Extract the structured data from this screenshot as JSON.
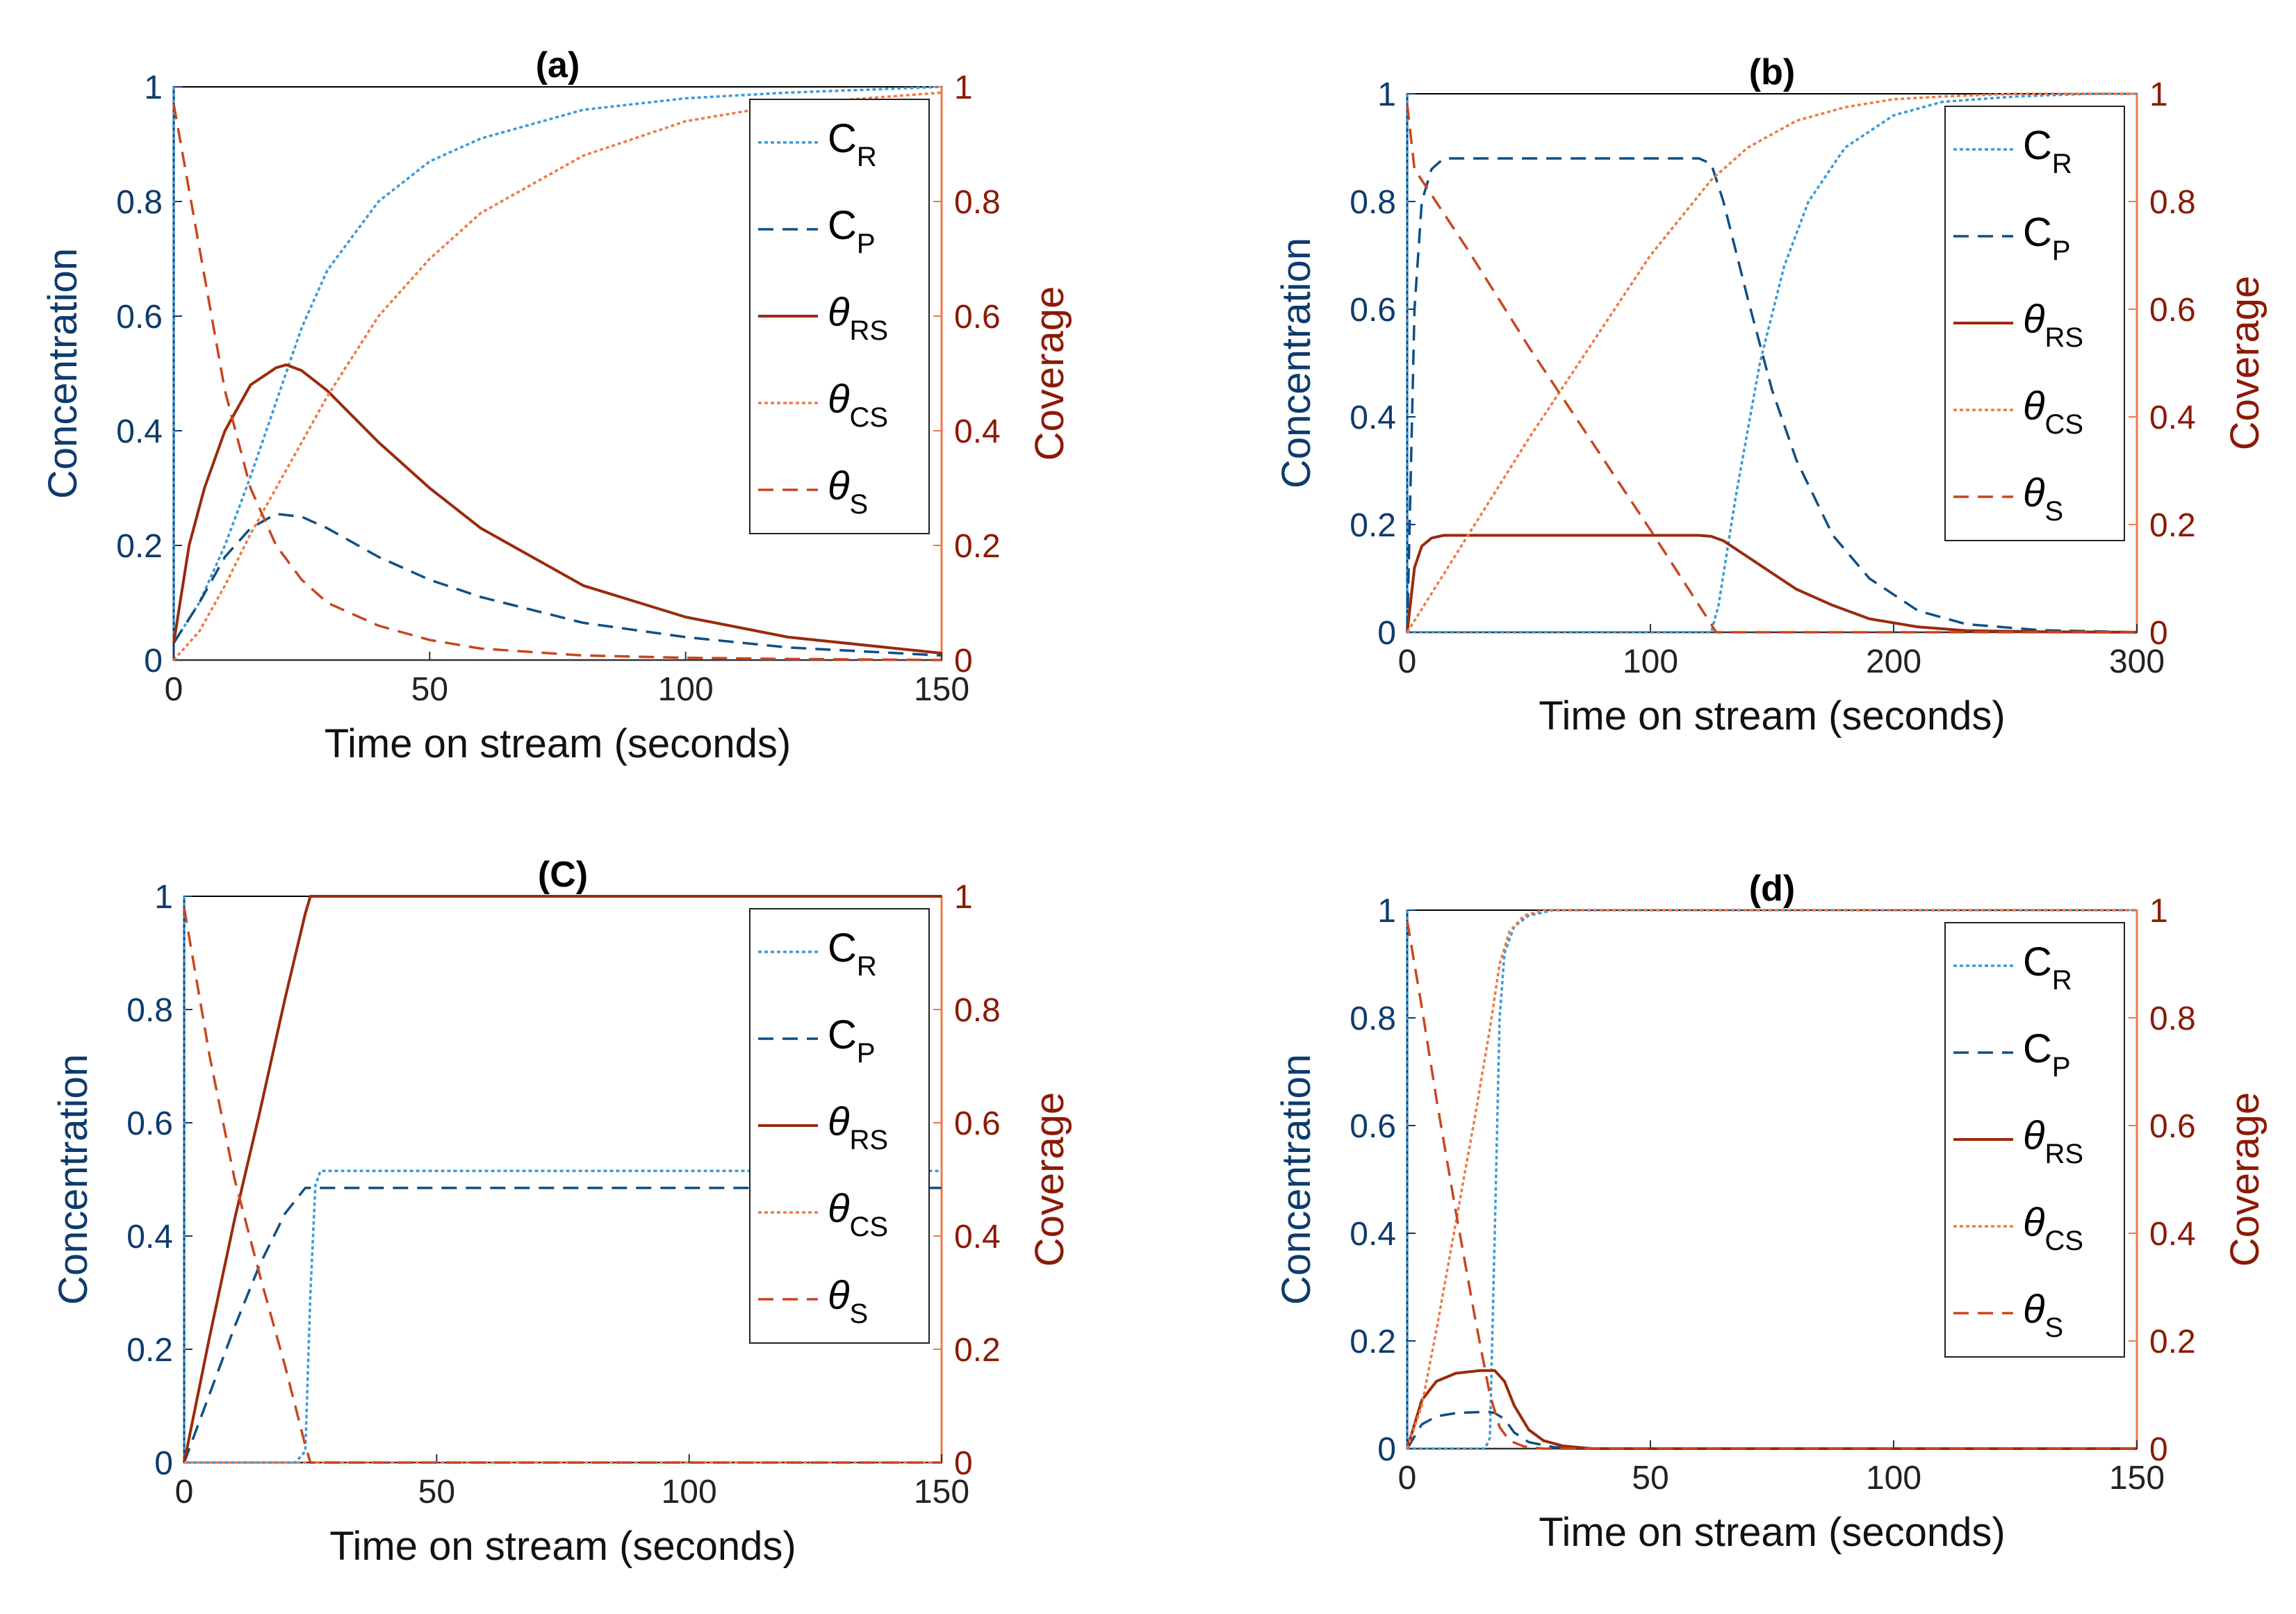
{
  "figure": {
    "colors": {
      "conc_axis": "#0d3b6e",
      "cov_axis": "#8b1a05",
      "c_r": "#3a9ad9",
      "c_p": "#0e4f86",
      "theta_rs": "#9a2a0c",
      "theta_cs": "#ef7a45",
      "theta_s": "#c8461e"
    }
  },
  "chart_data": [
    {
      "panel": "a",
      "type": "line",
      "title": "(a)",
      "xlabel": "Time on stream (seconds)",
      "ylabel_left": "Concentration",
      "ylabel_right": "Coverage",
      "xlim": [
        0,
        150
      ],
      "ylim_left": [
        0,
        1
      ],
      "ylim_right": [
        0,
        1
      ],
      "xticks": [
        "0",
        "50",
        "100",
        "150"
      ],
      "yticks_left": [
        "0",
        "0.2",
        "0.4",
        "0.6",
        "0.8",
        "1"
      ],
      "yticks_right": [
        "0",
        "0.2",
        "0.4",
        "0.6",
        "0.8",
        "1"
      ],
      "legend_position": "top-right",
      "legend": [
        {
          "main": "C",
          "sub": "R",
          "style": "dotted",
          "color": "#3a9ad9",
          "italic": false
        },
        {
          "main": "C",
          "sub": "P",
          "style": "dashed",
          "color": "#0e4f86",
          "italic": false
        },
        {
          "main": "θ",
          "sub": "RS",
          "style": "solid",
          "color": "#9a2a0c",
          "italic": true
        },
        {
          "main": "θ",
          "sub": "CS",
          "style": "dotted",
          "color": "#ef7a45",
          "italic": true
        },
        {
          "main": "θ",
          "sub": "S",
          "style": "dashed",
          "color": "#c8461e",
          "italic": true
        }
      ],
      "series": [
        {
          "name": "C_R",
          "style": "dotted",
          "color": "#3a9ad9",
          "x": [
            0,
            0,
            5,
            10,
            15,
            20,
            25,
            30,
            40,
            50,
            60,
            80,
            100,
            120,
            150
          ],
          "y": [
            1,
            0.03,
            0.1,
            0.2,
            0.32,
            0.45,
            0.58,
            0.68,
            0.8,
            0.87,
            0.91,
            0.96,
            0.98,
            0.99,
            1.0
          ]
        },
        {
          "name": "C_P",
          "style": "dashed",
          "color": "#0e4f86",
          "x": [
            0,
            5,
            10,
            15,
            20,
            25,
            30,
            40,
            50,
            60,
            80,
            100,
            120,
            150
          ],
          "y": [
            0.03,
            0.1,
            0.18,
            0.23,
            0.255,
            0.25,
            0.23,
            0.18,
            0.14,
            0.11,
            0.065,
            0.04,
            0.022,
            0.008
          ]
        },
        {
          "name": "θ_RS",
          "style": "solid",
          "color": "#9a2a0c",
          "x": [
            0,
            3,
            6,
            10,
            15,
            20,
            22,
            25,
            30,
            40,
            50,
            60,
            80,
            100,
            120,
            150
          ],
          "y": [
            0.03,
            0.2,
            0.3,
            0.4,
            0.48,
            0.51,
            0.515,
            0.505,
            0.47,
            0.38,
            0.3,
            0.23,
            0.13,
            0.075,
            0.04,
            0.012
          ]
        },
        {
          "name": "θ_CS",
          "style": "dotted",
          "color": "#ef7a45",
          "x": [
            0,
            5,
            10,
            15,
            20,
            25,
            30,
            40,
            50,
            60,
            80,
            100,
            120,
            150
          ],
          "y": [
            0,
            0.05,
            0.13,
            0.22,
            0.3,
            0.38,
            0.46,
            0.6,
            0.7,
            0.78,
            0.88,
            0.94,
            0.97,
            0.99
          ]
        },
        {
          "name": "θ_S",
          "style": "dashed",
          "color": "#c8461e",
          "x": [
            0,
            5,
            10,
            15,
            20,
            25,
            30,
            40,
            50,
            60,
            80,
            100,
            120,
            150
          ],
          "y": [
            0.97,
            0.72,
            0.47,
            0.3,
            0.2,
            0.14,
            0.1,
            0.06,
            0.035,
            0.02,
            0.008,
            0.004,
            0.002,
            0
          ]
        }
      ]
    },
    {
      "panel": "b",
      "type": "line",
      "title": "(b)",
      "xlabel": "Time on stream (seconds)",
      "ylabel_left": "Concentration",
      "ylabel_right": "Coverage",
      "xlim": [
        0,
        300
      ],
      "ylim_left": [
        0,
        1
      ],
      "ylim_right": [
        0,
        1
      ],
      "xticks": [
        "0",
        "100",
        "200",
        "300"
      ],
      "yticks_left": [
        "0",
        "0.2",
        "0.4",
        "0.6",
        "0.8",
        "1"
      ],
      "yticks_right": [
        "0",
        "0.2",
        "0.4",
        "0.6",
        "0.8",
        "1"
      ],
      "legend_position": "top-right",
      "legend": [
        {
          "main": "C",
          "sub": "R",
          "style": "dotted",
          "color": "#3a9ad9",
          "italic": false
        },
        {
          "main": "C",
          "sub": "P",
          "style": "dashed",
          "color": "#0e4f86",
          "italic": false
        },
        {
          "main": "θ",
          "sub": "RS",
          "style": "solid",
          "color": "#9a2a0c",
          "italic": true
        },
        {
          "main": "θ",
          "sub": "CS",
          "style": "dotted",
          "color": "#ef7a45",
          "italic": true
        },
        {
          "main": "θ",
          "sub": "S",
          "style": "dashed",
          "color": "#c8461e",
          "italic": true
        }
      ],
      "series": [
        {
          "name": "C_R",
          "style": "dotted",
          "color": "#3a9ad9",
          "x": [
            0,
            0,
            5,
            100,
            125,
            128,
            135,
            145,
            155,
            165,
            180,
            200,
            220,
            250,
            280,
            300
          ],
          "y": [
            1,
            0,
            0,
            0,
            0,
            0.05,
            0.25,
            0.5,
            0.68,
            0.8,
            0.9,
            0.96,
            0.985,
            0.995,
            1.0,
            1.0
          ]
        },
        {
          "name": "C_P",
          "style": "dashed",
          "color": "#0e4f86",
          "x": [
            0,
            3,
            6,
            10,
            15,
            30,
            100,
            120,
            125,
            130,
            140,
            150,
            160,
            175,
            190,
            210,
            230,
            260,
            300
          ],
          "y": [
            0,
            0.6,
            0.8,
            0.86,
            0.88,
            0.88,
            0.88,
            0.88,
            0.87,
            0.8,
            0.62,
            0.45,
            0.32,
            0.18,
            0.1,
            0.04,
            0.015,
            0.004,
            0
          ]
        },
        {
          "name": "θ_RS",
          "style": "solid",
          "color": "#9a2a0c",
          "x": [
            0,
            3,
            6,
            10,
            15,
            30,
            100,
            120,
            125,
            130,
            140,
            150,
            160,
            175,
            190,
            210,
            230,
            260,
            300
          ],
          "y": [
            0,
            0.12,
            0.16,
            0.175,
            0.18,
            0.18,
            0.18,
            0.18,
            0.178,
            0.17,
            0.14,
            0.11,
            0.08,
            0.05,
            0.025,
            0.01,
            0.003,
            0.001,
            0
          ]
        },
        {
          "name": "θ_CS",
          "style": "dotted",
          "color": "#ef7a45",
          "x": [
            0,
            25,
            50,
            75,
            100,
            125,
            140,
            160,
            180,
            200,
            220,
            250,
            300
          ],
          "y": [
            0,
            0.18,
            0.36,
            0.53,
            0.7,
            0.84,
            0.9,
            0.95,
            0.975,
            0.99,
            0.995,
            1.0,
            1.0
          ]
        },
        {
          "name": "θ_S",
          "style": "dashed",
          "color": "#c8461e",
          "x": [
            0,
            3,
            25,
            50,
            75,
            100,
            125,
            127,
            300
          ],
          "y": [
            0.98,
            0.86,
            0.71,
            0.53,
            0.36,
            0.19,
            0.015,
            0,
            0
          ]
        }
      ]
    },
    {
      "panel": "c",
      "type": "line",
      "title": "(C)",
      "xlabel": "Time on stream (seconds)",
      "ylabel_left": "Concentration",
      "ylabel_right": "Coverage",
      "xlim": [
        0,
        150
      ],
      "ylim_left": [
        0,
        1
      ],
      "ylim_right": [
        0,
        1
      ],
      "xticks": [
        "0",
        "50",
        "100",
        "150"
      ],
      "yticks_left": [
        "0",
        "0.2",
        "0.4",
        "0.6",
        "0.8",
        "1"
      ],
      "yticks_right": [
        "0",
        "0.2",
        "0.4",
        "0.6",
        "0.8",
        "1"
      ],
      "legend_position": "top-right",
      "legend": [
        {
          "main": "C",
          "sub": "R",
          "style": "dotted",
          "color": "#3a9ad9",
          "italic": false
        },
        {
          "main": "C",
          "sub": "P",
          "style": "dashed",
          "color": "#0e4f86",
          "italic": false
        },
        {
          "main": "θ",
          "sub": "RS",
          "style": "solid",
          "color": "#9a2a0c",
          "italic": true
        },
        {
          "main": "θ",
          "sub": "CS",
          "style": "dotted",
          "color": "#ef7a45",
          "italic": true
        },
        {
          "main": "θ",
          "sub": "S",
          "style": "dashed",
          "color": "#c8461e",
          "italic": true
        }
      ],
      "series": [
        {
          "name": "C_R",
          "style": "dotted",
          "color": "#3a9ad9",
          "x": [
            0,
            0,
            5,
            22,
            24,
            25,
            26,
            27,
            150
          ],
          "y": [
            1,
            0,
            0,
            0,
            0.02,
            0.3,
            0.49,
            0.515,
            0.515
          ]
        },
        {
          "name": "C_P",
          "style": "dashed",
          "color": "#0e4f86",
          "x": [
            0,
            5,
            10,
            15,
            20,
            24,
            26,
            150
          ],
          "y": [
            0,
            0.12,
            0.24,
            0.35,
            0.44,
            0.485,
            0.485,
            0.485
          ]
        },
        {
          "name": "θ_RS",
          "style": "solid",
          "color": "#9a2a0c",
          "x": [
            0,
            5,
            10,
            15,
            20,
            24,
            25,
            150
          ],
          "y": [
            0,
            0.22,
            0.43,
            0.62,
            0.82,
            0.97,
            1.0,
            1.0
          ]
        },
        {
          "name": "θ_CS",
          "style": "dotted",
          "color": "#ef7a45",
          "x": [
            0,
            150
          ],
          "y": [
            0,
            0
          ]
        },
        {
          "name": "θ_S",
          "style": "dashed",
          "color": "#c8461e",
          "x": [
            0,
            5,
            10,
            15,
            20,
            24,
            25,
            150
          ],
          "y": [
            0.98,
            0.72,
            0.5,
            0.33,
            0.17,
            0.03,
            0,
            0
          ]
        }
      ]
    },
    {
      "panel": "d",
      "type": "line",
      "title": "(d)",
      "xlabel": "Time on stream (seconds)",
      "ylabel_left": "Concentration",
      "ylabel_right": "Coverage",
      "xlim": [
        0,
        150
      ],
      "ylim_left": [
        0,
        1
      ],
      "ylim_right": [
        0,
        1
      ],
      "xticks": [
        "0",
        "50",
        "100",
        "150"
      ],
      "yticks_left": [
        "0",
        "0.2",
        "0.4",
        "0.6",
        "0.8",
        "1"
      ],
      "yticks_right": [
        "0",
        "0.2",
        "0.4",
        "0.6",
        "0.8",
        "1"
      ],
      "legend_position": "top-right",
      "legend": [
        {
          "main": "C",
          "sub": "R",
          "style": "dotted",
          "color": "#3a9ad9",
          "italic": false
        },
        {
          "main": "C",
          "sub": "P",
          "style": "dashed",
          "color": "#0e4f86",
          "italic": false
        },
        {
          "main": "θ",
          "sub": "RS",
          "style": "solid",
          "color": "#9a2a0c",
          "italic": true
        },
        {
          "main": "θ",
          "sub": "CS",
          "style": "dotted",
          "color": "#ef7a45",
          "italic": true
        },
        {
          "main": "θ",
          "sub": "S",
          "style": "dashed",
          "color": "#c8461e",
          "italic": true
        }
      ],
      "series": [
        {
          "name": "C_R",
          "style": "dotted",
          "color": "#3a9ad9",
          "x": [
            0,
            0,
            5,
            16,
            17,
            18,
            19,
            20,
            22,
            25,
            30,
            150
          ],
          "y": [
            1,
            0,
            0,
            0,
            0.02,
            0.4,
            0.8,
            0.92,
            0.97,
            0.99,
            1.0,
            1.0
          ]
        },
        {
          "name": "C_P",
          "style": "dashed",
          "color": "#0e4f86",
          "x": [
            0,
            3,
            6,
            10,
            15,
            17,
            18,
            20,
            22,
            25,
            30,
            35,
            150
          ],
          "y": [
            0,
            0.045,
            0.06,
            0.066,
            0.068,
            0.068,
            0.066,
            0.055,
            0.03,
            0.012,
            0.003,
            0,
            0
          ]
        },
        {
          "name": "θ_RS",
          "style": "solid",
          "color": "#9a2a0c",
          "x": [
            0,
            3,
            6,
            10,
            15,
            18,
            20,
            22,
            25,
            28,
            32,
            38,
            150
          ],
          "y": [
            0,
            0.09,
            0.125,
            0.14,
            0.145,
            0.145,
            0.125,
            0.08,
            0.035,
            0.015,
            0.005,
            0,
            0
          ]
        },
        {
          "name": "θ_CS",
          "style": "dotted",
          "color": "#ef7a45",
          "x": [
            0,
            3,
            6,
            10,
            14,
            17,
            19,
            21,
            24,
            28,
            150
          ],
          "y": [
            0,
            0.08,
            0.22,
            0.42,
            0.62,
            0.78,
            0.9,
            0.96,
            0.99,
            1.0,
            1.0
          ]
        },
        {
          "name": "θ_S",
          "style": "dashed",
          "color": "#c8461e",
          "x": [
            0,
            3,
            6,
            10,
            14,
            17,
            19,
            21,
            24,
            28,
            150
          ],
          "y": [
            0.98,
            0.82,
            0.65,
            0.44,
            0.24,
            0.1,
            0.04,
            0.015,
            0.004,
            0,
            0
          ]
        }
      ]
    }
  ]
}
